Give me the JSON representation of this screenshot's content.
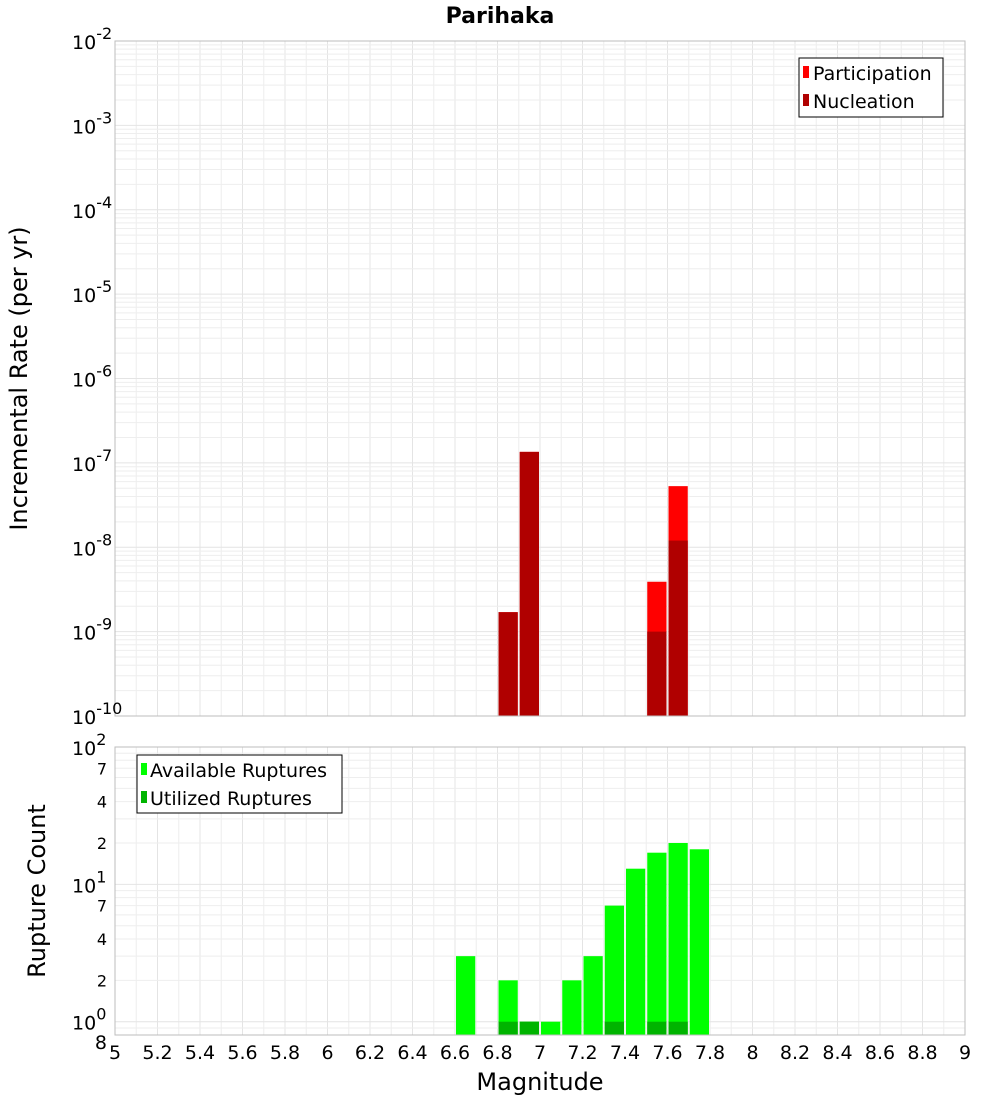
{
  "chart_data": [
    {
      "type": "bar",
      "title": "Parihaka",
      "xlabel": "",
      "ylabel": "Incremental Rate (per yr)",
      "y_scale": "log",
      "ylim": [
        1e-10,
        0.01
      ],
      "xlim": [
        5,
        9
      ],
      "bar_width": 0.1,
      "legend_position": "top-right",
      "grid": true,
      "series": [
        {
          "name": "Participation",
          "color": "#ff0000",
          "x": [
            6.85,
            6.95,
            7.55,
            7.65
          ],
          "values": [
            1.7e-09,
            1.35e-07,
            3.9e-09,
            5.3e-08
          ]
        },
        {
          "name": "Nucleation",
          "color": "#b00000",
          "x": [
            6.85,
            6.95,
            7.55,
            7.65
          ],
          "values": [
            1.7e-09,
            1.35e-07,
            1e-09,
            1.2e-08
          ]
        }
      ]
    },
    {
      "type": "bar",
      "title": "",
      "xlabel": "Magnitude",
      "ylabel": "Rupture Count",
      "y_scale": "log",
      "ylim": [
        0.8,
        100
      ],
      "xlim": [
        5,
        9
      ],
      "bar_width": 0.1,
      "legend_position": "top-left",
      "grid": true,
      "x_ticks": [
        "5",
        "5.2",
        "5.4",
        "5.6",
        "5.8",
        "6",
        "6.2",
        "6.4",
        "6.6",
        "6.8",
        "7",
        "7.2",
        "7.4",
        "7.6",
        "7.8",
        "8",
        "8.2",
        "8.4",
        "8.6",
        "8.8",
        "9"
      ],
      "series": [
        {
          "name": "Available Ruptures",
          "color": "#00ff00",
          "x": [
            6.65,
            6.85,
            6.95,
            7.05,
            7.15,
            7.25,
            7.35,
            7.45,
            7.55,
            7.65,
            7.75
          ],
          "values": [
            3,
            2,
            1,
            1,
            2,
            3,
            7,
            13,
            17,
            20,
            18
          ]
        },
        {
          "name": "Utilized Ruptures",
          "color": "#00b400",
          "x": [
            6.85,
            6.95,
            7.35,
            7.55,
            7.65
          ],
          "values": [
            1,
            1,
            1,
            1,
            1
          ]
        }
      ]
    }
  ]
}
